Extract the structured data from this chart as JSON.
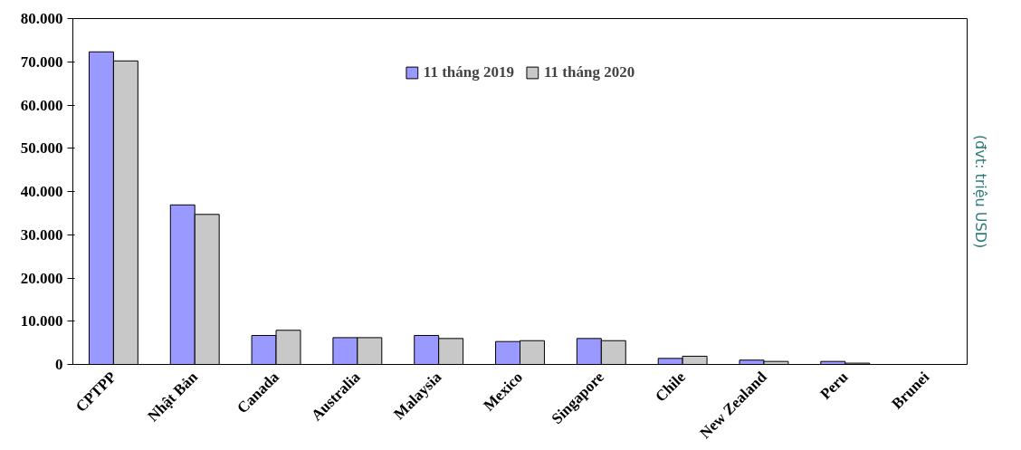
{
  "chart_data": {
    "type": "bar",
    "categories": [
      "CPTPP",
      "Nhật Bản",
      "Canada",
      "Australia",
      "Malaysia",
      "Mexico",
      "Singapore",
      "Chile",
      "New Zealand",
      "Peru",
      "Brunei"
    ],
    "series": [
      {
        "name": "11 tháng 2019",
        "color": "#9999ff",
        "values": [
          72300,
          36900,
          6700,
          6200,
          6700,
          5300,
          6000,
          1400,
          1000,
          700,
          null
        ]
      },
      {
        "name": "11 tháng 2020",
        "color": "#c8c8c8",
        "values": [
          70200,
          34700,
          7900,
          6200,
          6000,
          5500,
          5500,
          1900,
          700,
          300,
          null
        ]
      }
    ],
    "ylim": [
      0,
      80000
    ],
    "yticks": [
      {
        "value": 0,
        "label": "0"
      },
      {
        "value": 10000,
        "label": "10.000"
      },
      {
        "value": 20000,
        "label": "20.000"
      },
      {
        "value": 30000,
        "label": "30.000"
      },
      {
        "value": 40000,
        "label": "40.000"
      },
      {
        "value": 50000,
        "label": "50.000"
      },
      {
        "value": 60000,
        "label": "60.000"
      },
      {
        "value": 70000,
        "label": "70.000"
      },
      {
        "value": 80000,
        "label": "80.000"
      }
    ],
    "annotations": [
      "(đvt: triệu USD)"
    ],
    "legend": "top",
    "grid": false
  }
}
